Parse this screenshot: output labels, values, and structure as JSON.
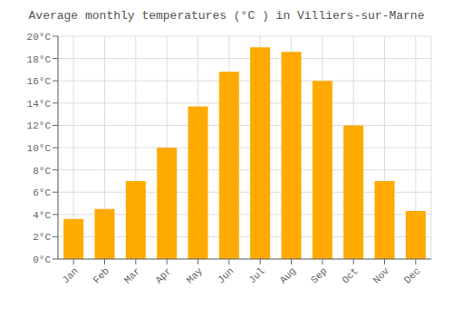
{
  "chart_data": {
    "type": "bar",
    "title": "Average monthly temperatures (°C ) in Villiers-sur-Marne",
    "categories": [
      "Jan",
      "Feb",
      "Mar",
      "Apr",
      "May",
      "Jun",
      "Jul",
      "Aug",
      "Sep",
      "Oct",
      "Nov",
      "Dec"
    ],
    "values": [
      3.6,
      4.5,
      7.0,
      10.0,
      13.7,
      16.8,
      19.0,
      18.6,
      16.0,
      12.0,
      7.0,
      4.3
    ],
    "color": "#FFAA00",
    "ylim": [
      0,
      20
    ],
    "yticks": [
      {
        "value": 0,
        "label": "0°C"
      },
      {
        "value": 2,
        "label": "2°C"
      },
      {
        "value": 4,
        "label": "4°C"
      },
      {
        "value": 6,
        "label": "6°C"
      },
      {
        "value": 8,
        "label": "8°C"
      },
      {
        "value": 10,
        "label": "10°C"
      },
      {
        "value": 12,
        "label": "12°C"
      },
      {
        "value": 14,
        "label": "14°C"
      },
      {
        "value": 16,
        "label": "16°C"
      },
      {
        "value": 18,
        "label": "18°C"
      },
      {
        "value": 20,
        "label": "20°C"
      }
    ],
    "grid": true
  }
}
